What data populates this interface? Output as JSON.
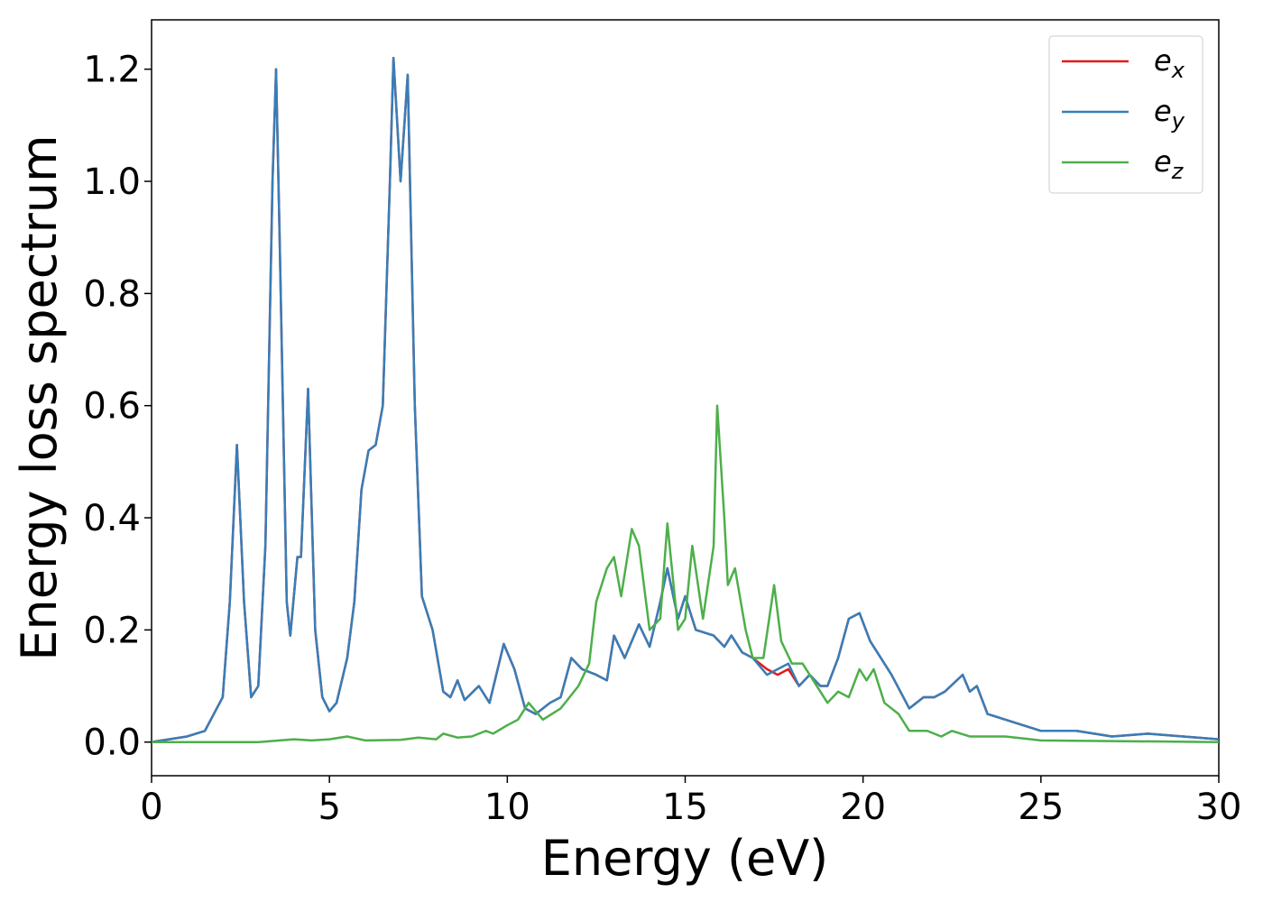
{
  "chart_data": {
    "type": "line",
    "xlabel": "Energy (eV)",
    "ylabel": "Energy loss spectrum",
    "xlim": [
      0,
      30
    ],
    "ylim": [
      -0.06,
      1.288
    ],
    "xticks": [
      0,
      5,
      10,
      15,
      20,
      25,
      30
    ],
    "yticks": [
      {
        "value": 0,
        "label": "0.0"
      },
      0.2,
      0.4,
      0.6,
      0.8,
      {
        "value": 1,
        "label": "1.0"
      },
      1.2
    ],
    "legend": "upper right",
    "grid": false,
    "series": [
      {
        "name": "e_x",
        "color": "#e41a1c",
        "x": [
          0,
          1,
          1.5,
          2,
          2.2,
          2.4,
          2.6,
          2.8,
          3.0,
          3.2,
          3.4,
          3.5,
          3.6,
          3.8,
          3.9,
          4.1,
          4.2,
          4.4,
          4.6,
          4.8,
          5.0,
          5.2,
          5.5,
          5.7,
          5.9,
          6.1,
          6.3,
          6.5,
          6.7,
          6.8,
          7.0,
          7.2,
          7.4,
          7.6,
          7.9,
          8.2,
          8.4,
          8.6,
          8.8,
          9.2,
          9.5,
          9.9,
          10.2,
          10.5,
          10.8,
          11.2,
          11.5,
          11.8,
          12.1,
          12.5,
          12.8,
          13.0,
          13.3,
          13.7,
          14.0,
          14.3,
          14.5,
          14.8,
          15.0,
          15.3,
          15.8,
          16.1,
          16.3,
          16.6,
          16.9,
          17.3,
          17.6,
          17.9,
          18.2,
          18.5,
          18.8,
          19.0,
          19.3,
          19.6,
          19.9,
          20.2,
          20.5,
          20.8,
          21.3,
          21.7,
          22.0,
          22.3,
          22.8,
          23.0,
          23.2,
          23.5,
          24.0,
          24.5,
          25.0,
          26.0,
          27.0,
          28.0,
          29.0,
          30.0
        ],
        "values": [
          0,
          0.01,
          0.02,
          0.08,
          0.25,
          0.53,
          0.25,
          0.08,
          0.1,
          0.35,
          1.0,
          1.2,
          0.9,
          0.25,
          0.19,
          0.33,
          0.33,
          0.63,
          0.2,
          0.08,
          0.055,
          0.07,
          0.15,
          0.25,
          0.45,
          0.52,
          0.53,
          0.6,
          1.0,
          1.22,
          1.0,
          1.19,
          0.6,
          0.26,
          0.2,
          0.09,
          0.08,
          0.11,
          0.075,
          0.1,
          0.07,
          0.175,
          0.13,
          0.06,
          0.05,
          0.07,
          0.08,
          0.15,
          0.13,
          0.12,
          0.11,
          0.19,
          0.15,
          0.21,
          0.17,
          0.25,
          0.31,
          0.22,
          0.26,
          0.2,
          0.19,
          0.17,
          0.19,
          0.16,
          0.15,
          0.13,
          0.12,
          0.13,
          0.1,
          0.12,
          0.1,
          0.1,
          0.15,
          0.22,
          0.23,
          0.18,
          0.15,
          0.12,
          0.06,
          0.08,
          0.08,
          0.09,
          0.12,
          0.09,
          0.1,
          0.05,
          0.04,
          0.03,
          0.02,
          0.02,
          0.01,
          0.015,
          0.01,
          0.005
        ]
      },
      {
        "name": "e_y",
        "color": "#377eb8",
        "x": [
          0,
          1,
          1.5,
          2,
          2.2,
          2.4,
          2.6,
          2.8,
          3.0,
          3.2,
          3.4,
          3.5,
          3.6,
          3.8,
          3.9,
          4.1,
          4.2,
          4.4,
          4.6,
          4.8,
          5.0,
          5.2,
          5.5,
          5.7,
          5.9,
          6.1,
          6.3,
          6.5,
          6.7,
          6.8,
          7.0,
          7.2,
          7.4,
          7.6,
          7.9,
          8.2,
          8.4,
          8.6,
          8.8,
          9.2,
          9.5,
          9.9,
          10.2,
          10.5,
          10.8,
          11.2,
          11.5,
          11.8,
          12.1,
          12.5,
          12.8,
          13.0,
          13.3,
          13.7,
          14.0,
          14.3,
          14.5,
          14.8,
          15.0,
          15.3,
          15.8,
          16.1,
          16.3,
          16.6,
          16.9,
          17.3,
          17.6,
          17.9,
          18.2,
          18.5,
          18.8,
          19.0,
          19.3,
          19.6,
          19.9,
          20.2,
          20.5,
          20.8,
          21.3,
          21.7,
          22.0,
          22.3,
          22.8,
          23.0,
          23.2,
          23.5,
          24.0,
          24.5,
          25.0,
          26.0,
          27.0,
          28.0,
          29.0,
          30.0
        ],
        "values": [
          0,
          0.01,
          0.02,
          0.08,
          0.25,
          0.53,
          0.25,
          0.08,
          0.1,
          0.35,
          1.0,
          1.2,
          0.9,
          0.25,
          0.19,
          0.33,
          0.33,
          0.63,
          0.2,
          0.08,
          0.055,
          0.07,
          0.15,
          0.25,
          0.45,
          0.52,
          0.53,
          0.6,
          1.0,
          1.22,
          1.0,
          1.19,
          0.6,
          0.26,
          0.2,
          0.09,
          0.08,
          0.11,
          0.075,
          0.1,
          0.07,
          0.175,
          0.13,
          0.06,
          0.05,
          0.07,
          0.08,
          0.15,
          0.13,
          0.12,
          0.11,
          0.19,
          0.15,
          0.21,
          0.17,
          0.25,
          0.31,
          0.22,
          0.26,
          0.2,
          0.19,
          0.17,
          0.19,
          0.16,
          0.15,
          0.12,
          0.13,
          0.14,
          0.1,
          0.12,
          0.1,
          0.1,
          0.15,
          0.22,
          0.23,
          0.18,
          0.15,
          0.12,
          0.06,
          0.08,
          0.08,
          0.09,
          0.12,
          0.09,
          0.1,
          0.05,
          0.04,
          0.03,
          0.02,
          0.02,
          0.01,
          0.015,
          0.01,
          0.005
        ]
      },
      {
        "name": "e_z",
        "color": "#4daf4a",
        "x": [
          0,
          3,
          4,
          4.5,
          5,
          5.5,
          6,
          7,
          7.5,
          8,
          8.2,
          8.6,
          9,
          9.4,
          9.6,
          10,
          10.3,
          10.6,
          11,
          11.5,
          12,
          12.3,
          12.5,
          12.8,
          13.0,
          13.2,
          13.5,
          13.7,
          14.0,
          14.3,
          14.5,
          14.8,
          15.0,
          15.2,
          15.5,
          15.8,
          15.9,
          16.1,
          16.2,
          16.4,
          16.7,
          16.9,
          17.2,
          17.5,
          17.7,
          18.0,
          18.3,
          18.7,
          19.0,
          19.3,
          19.6,
          19.9,
          20.1,
          20.3,
          20.6,
          21.0,
          21.3,
          21.8,
          22.2,
          22.5,
          23.0,
          24.0,
          25.0,
          30.0
        ],
        "values": [
          0,
          0,
          0.005,
          0.003,
          0.005,
          0.01,
          0.003,
          0.004,
          0.008,
          0.005,
          0.015,
          0.008,
          0.01,
          0.02,
          0.015,
          0.03,
          0.04,
          0.07,
          0.04,
          0.06,
          0.1,
          0.14,
          0.25,
          0.31,
          0.33,
          0.26,
          0.38,
          0.35,
          0.2,
          0.22,
          0.39,
          0.2,
          0.22,
          0.35,
          0.22,
          0.35,
          0.6,
          0.4,
          0.28,
          0.31,
          0.2,
          0.15,
          0.15,
          0.28,
          0.18,
          0.14,
          0.14,
          0.1,
          0.07,
          0.09,
          0.08,
          0.13,
          0.11,
          0.13,
          0.07,
          0.05,
          0.02,
          0.02,
          0.01,
          0.02,
          0.01,
          0.01,
          0.003,
          0
        ]
      }
    ]
  }
}
